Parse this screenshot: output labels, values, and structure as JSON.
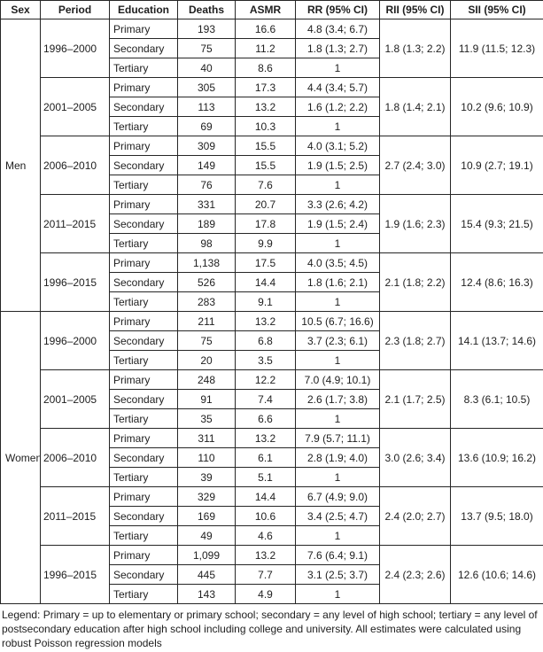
{
  "table": {
    "headers": [
      "Sex",
      "Period",
      "Education",
      "Deaths",
      "ASMR",
      "RR (95% CI)",
      "RII (95% CI)",
      "SII (95% CI)"
    ],
    "sections": [
      {
        "sex": "Men",
        "periods": [
          {
            "period": "1996–2000",
            "rows": [
              [
                "Primary",
                "193",
                "16.6",
                "4.8 (3.4; 6.7)"
              ],
              [
                "Secondary",
                "75",
                "11.2",
                "1.8 (1.3; 2.7)"
              ],
              [
                "Tertiary",
                "40",
                "8.6",
                "1"
              ]
            ],
            "rii": "1.8 (1.3; 2.2)",
            "sii": "11.9 (11.5; 12.3)"
          },
          {
            "period": "2001–2005",
            "rows": [
              [
                "Primary",
                "305",
                "17.3",
                "4.4 (3.4; 5.7)"
              ],
              [
                "Secondary",
                "113",
                "13.2",
                "1.6 (1.2; 2.2)"
              ],
              [
                "Tertiary",
                "69",
                "10.3",
                "1"
              ]
            ],
            "rii": "1.8 (1.4; 2.1)",
            "sii": "10.2 (9.6; 10.9)"
          },
          {
            "period": "2006–2010",
            "rows": [
              [
                "Primary",
                "309",
                "15.5",
                "4.0 (3.1; 5.2)"
              ],
              [
                "Secondary",
                "149",
                "15.5",
                "1.9 (1.5; 2.5)"
              ],
              [
                "Tertiary",
                "76",
                "7.6",
                "1"
              ]
            ],
            "rii": "2.7 (2.4; 3.0)",
            "sii": "10.9 (2.7; 19.1)"
          },
          {
            "period": "2011–2015",
            "rows": [
              [
                "Primary",
                "331",
                "20.7",
                "3.3 (2.6; 4.2)"
              ],
              [
                "Secondary",
                "189",
                "17.8",
                "1.9 (1.5; 2.4)"
              ],
              [
                "Tertiary",
                "98",
                "9.9",
                "1"
              ]
            ],
            "rii": "1.9 (1.6; 2.3)",
            "sii": "15.4 (9.3; 21.5)"
          },
          {
            "period": "1996–2015",
            "rows": [
              [
                "Primary",
                "1,138",
                "17.5",
                "4.0 (3.5; 4.5)"
              ],
              [
                "Secondary",
                "526",
                "14.4",
                "1.8 (1.6; 2.1)"
              ],
              [
                "Tertiary",
                "283",
                "9.1",
                "1"
              ]
            ],
            "rii": "2.1 (1.8; 2.2)",
            "sii": "12.4 (8.6; 16.3)"
          }
        ]
      },
      {
        "sex": "Women",
        "periods": [
          {
            "period": "1996–2000",
            "rows": [
              [
                "Primary",
                "211",
                "13.2",
                "10.5 (6.7; 16.6)"
              ],
              [
                "Secondary",
                "75",
                "6.8",
                "3.7 (2.3; 6.1)"
              ],
              [
                "Tertiary",
                "20",
                "3.5",
                "1"
              ]
            ],
            "rii": "2.3 (1.8; 2.7)",
            "sii": "14.1 (13.7; 14.6)"
          },
          {
            "period": "2001–2005",
            "rows": [
              [
                "Primary",
                "248",
                "12.2",
                "7.0 (4.9; 10.1)"
              ],
              [
                "Secondary",
                "91",
                "7.4",
                "2.6 (1.7; 3.8)"
              ],
              [
                "Tertiary",
                "35",
                "6.6",
                "1"
              ]
            ],
            "rii": "2.1 (1.7; 2.5)",
            "sii": "8.3 (6.1; 10.5)"
          },
          {
            "period": "2006–2010",
            "rows": [
              [
                "Primary",
                "311",
                "13.2",
                "7.9 (5.7; 11.1)"
              ],
              [
                "Secondary",
                "110",
                "6.1",
                "2.8 (1.9; 4.0)"
              ],
              [
                "Tertiary",
                "39",
                "5.1",
                "1"
              ]
            ],
            "rii": "3.0 (2.6; 3.4)",
            "sii": "13.6 (10.9; 16.2)"
          },
          {
            "period": "2011–2015",
            "rows": [
              [
                "Primary",
                "329",
                "14.4",
                "6.7 (4.9; 9.0)"
              ],
              [
                "Secondary",
                "169",
                "10.6",
                "3.4 (2.5; 4.7)"
              ],
              [
                "Tertiary",
                "49",
                "4.6",
                "1"
              ]
            ],
            "rii": "2.4 (2.0; 2.7)",
            "sii": "13.7 (9.5; 18.0)"
          },
          {
            "period": "1996–2015",
            "rows": [
              [
                "Primary",
                "1,099",
                "13.2",
                "7.6 (6.4; 9.1)"
              ],
              [
                "Secondary",
                "445",
                "7.7",
                "3.1 (2.5; 3.7)"
              ],
              [
                "Tertiary",
                "143",
                "4.9",
                "1"
              ]
            ],
            "rii": "2.4 (2.3; 2.6)",
            "sii": "12.6 (10.6; 14.6)"
          }
        ]
      }
    ]
  },
  "legend": {
    "text": "Legend: Primary = up to elementary or primary school; secondary = any level of high school; tertiary = any level of postsecondary education after high school including college and university. All estimates were calculated using robust Poisson regression models"
  }
}
